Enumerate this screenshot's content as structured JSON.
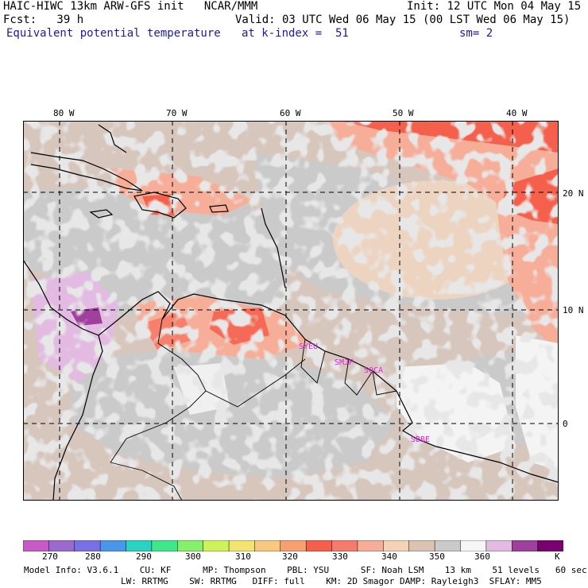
{
  "header": {
    "title": "HAIC-HIWC 13km ARW-GFS init   NCAR/MMM",
    "init": "Init: 12 UTC Mon 04 May 15",
    "fcst": "Fcst:   39 h",
    "valid": "Valid: 03 UTC Wed 06 May 15 (00 LST Wed 06 May 15)",
    "field": "Equivalent potential temperature",
    "level": "at k-index =  51",
    "smooth": "sm= 2"
  },
  "map": {
    "lon_labels": [
      "80 W",
      "70 W",
      "60 W",
      "50 W",
      "40 W"
    ],
    "lat_labels": [
      "20 N",
      "10 N",
      "0"
    ],
    "stations": [
      "SYEU",
      "SMJP",
      "SOCA",
      "SBBE"
    ]
  },
  "colorbar": {
    "ticks": [
      "270",
      "280",
      "290",
      "300",
      "310",
      "320",
      "330",
      "340",
      "350",
      "360"
    ],
    "unit": "K",
    "colors": [
      "#c85ac8",
      "#9a6acf",
      "#7a70e6",
      "#4a96ea",
      "#2ad2c2",
      "#3ee88a",
      "#86f06a",
      "#cdf25a",
      "#f2e470",
      "#f8c880",
      "#f8a070",
      "#f4604c",
      "#f67a6e",
      "#f6ae98",
      "#f4d2b8",
      "#dcc2b2",
      "#cacaca",
      "#f6f6f6",
      "#e2bae2",
      "#a0409e",
      "#7a0070"
    ]
  },
  "footer": {
    "line1": "Model Info: V3.6.1    CU: KF      MP: Thompson    PBL: YSU      SF: Noah LSM    13 km    51 levels   60 sec",
    "line2": "LW: RRTMG    SW: RRTMG   DIFF: full    KM: 2D Smagor DAMP: Rayleigh3  SFLAY: MM5"
  }
}
